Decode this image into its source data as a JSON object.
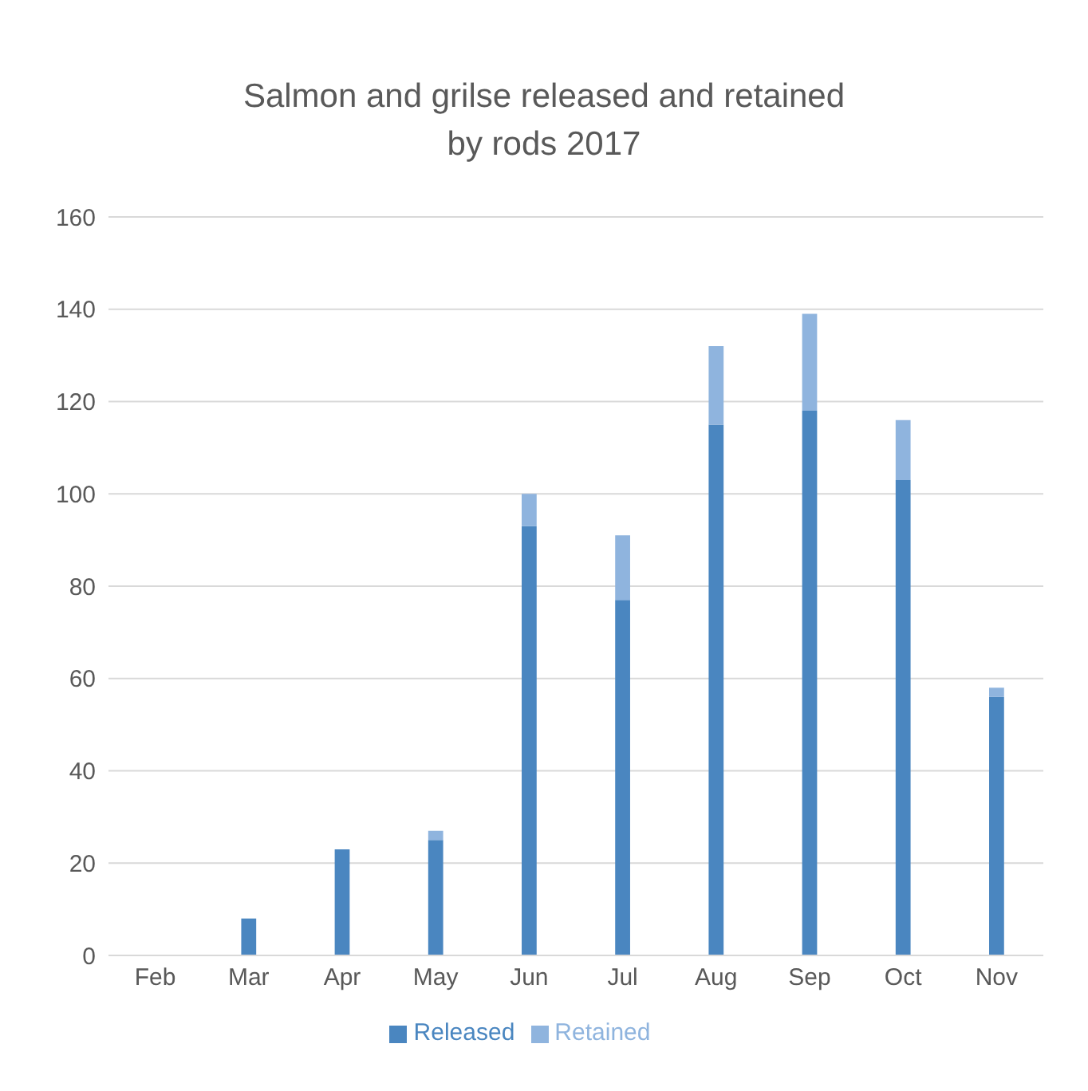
{
  "chart_data": {
    "type": "bar",
    "title": "Salmon and grilse released and retained\nby rods 2017",
    "categories": [
      "Feb",
      "Mar",
      "Apr",
      "May",
      "Jun",
      "Jul",
      "Aug",
      "Sep",
      "Oct",
      "Nov"
    ],
    "stacked": true,
    "series": [
      {
        "name": "Released",
        "color": "#4a86c0",
        "values": [
          0,
          8,
          23,
          25,
          93,
          77,
          115,
          118,
          103,
          56
        ]
      },
      {
        "name": "Retained",
        "color": "#8fb4de",
        "values": [
          0,
          0,
          0,
          2,
          7,
          14,
          17,
          21,
          13,
          2
        ]
      }
    ],
    "ylim": [
      0,
      160
    ],
    "yticks": [
      0,
      20,
      40,
      60,
      80,
      100,
      120,
      140,
      160
    ],
    "grid": "y",
    "legend": "bottom"
  }
}
